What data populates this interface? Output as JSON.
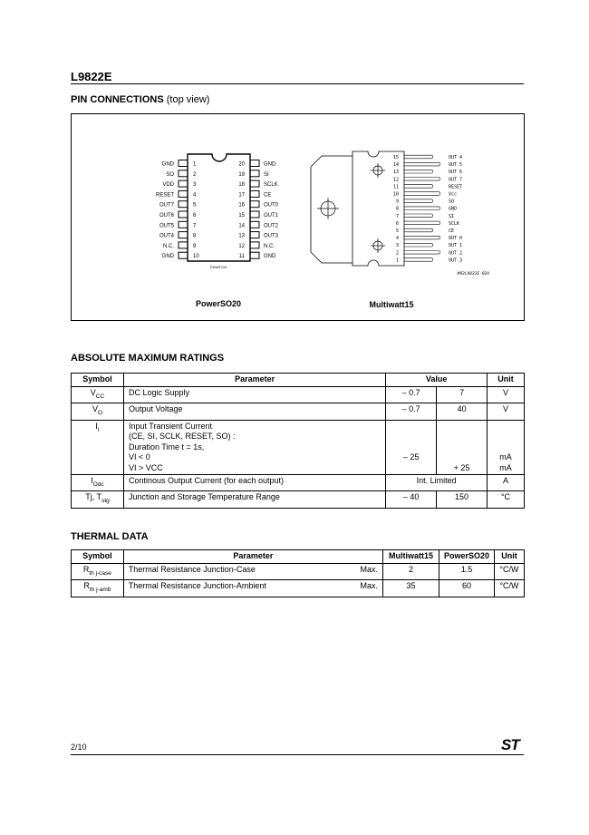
{
  "header": {
    "title": "L9822E"
  },
  "pin_connections": {
    "title": "PIN CONNECTIONS",
    "subtitle": "(top view)",
    "powerso20": {
      "label": "PowerSO20",
      "code": "D94AT119",
      "left_pins": [
        {
          "n": "1",
          "name": "GND"
        },
        {
          "n": "2",
          "name": "SO"
        },
        {
          "n": "3",
          "name": "VDD"
        },
        {
          "n": "4",
          "name": "RESET"
        },
        {
          "n": "5",
          "name": "OUT7"
        },
        {
          "n": "6",
          "name": "OUT6"
        },
        {
          "n": "7",
          "name": "OUT5"
        },
        {
          "n": "8",
          "name": "OUT4"
        },
        {
          "n": "9",
          "name": "N.C."
        },
        {
          "n": "10",
          "name": "GND"
        }
      ],
      "right_pins": [
        {
          "n": "20",
          "name": "GND"
        },
        {
          "n": "19",
          "name": "SI"
        },
        {
          "n": "18",
          "name": "SCLK"
        },
        {
          "n": "17",
          "name": "CE"
        },
        {
          "n": "16",
          "name": "OUT0"
        },
        {
          "n": "15",
          "name": "OUT1"
        },
        {
          "n": "14",
          "name": "OUT2"
        },
        {
          "n": "13",
          "name": "OUT3"
        },
        {
          "n": "12",
          "name": "N.C."
        },
        {
          "n": "11",
          "name": "GND"
        }
      ]
    },
    "multiwatt15": {
      "label": "Multiwatt15",
      "code": "M92L9822E-02A",
      "pins": [
        {
          "n": "15",
          "name": "OUT 4"
        },
        {
          "n": "14",
          "name": "OUT 5"
        },
        {
          "n": "13",
          "name": "OUT 6"
        },
        {
          "n": "12",
          "name": "OUT 7"
        },
        {
          "n": "11",
          "name": "RESET"
        },
        {
          "n": "10",
          "name": "Vcc"
        },
        {
          "n": "9",
          "name": "SO"
        },
        {
          "n": "8",
          "name": "GND"
        },
        {
          "n": "7",
          "name": "SI"
        },
        {
          "n": "6",
          "name": "SCLK"
        },
        {
          "n": "5",
          "name": "CE"
        },
        {
          "n": "4",
          "name": "OUT 0"
        },
        {
          "n": "3",
          "name": "OUT 1"
        },
        {
          "n": "2",
          "name": "OUT 2"
        },
        {
          "n": "1",
          "name": "OUT 3"
        }
      ]
    }
  },
  "abs_max": {
    "title": "ABSOLUTE MAXIMUM RATINGS",
    "headers": {
      "symbol": "Symbol",
      "parameter": "Parameter",
      "value": "Value",
      "unit": "Unit"
    },
    "rows": [
      {
        "sym": "V",
        "sub": "CC",
        "param": [
          "DC Logic Supply"
        ],
        "v1": "– 0.7",
        "v2": "7",
        "unit": "V"
      },
      {
        "sym": "V",
        "sub": "O",
        "param": [
          "Output Voltage"
        ],
        "v1": "– 0.7",
        "v2": "40",
        "unit": "V"
      },
      {
        "sym": "I",
        "sub": "I",
        "param": [
          "Input Transient Current",
          "(CE,  SI,  SCLK,  RESET,  SO) :",
          "Duration Time t = 1s,",
          "VI < 0",
          "VI > VCC"
        ],
        "v1": "– 25",
        "v2": "+ 25",
        "unit1": "mA",
        "unit2": "mA"
      },
      {
        "sym": "I",
        "sub": "Odc",
        "param": [
          "Continous Output Current (for each output)"
        ],
        "merged": "Int. Limited",
        "unit": "A"
      },
      {
        "sym": "Tj,  T",
        "sub": "stg",
        "param": [
          "Junction and Storage Temperature Range"
        ],
        "v1": "– 40",
        "v2": "150",
        "unit": "°C"
      }
    ]
  },
  "thermal": {
    "title": "THERMAL DATA",
    "headers": {
      "symbol": "Symbol",
      "parameter": "Parameter",
      "mw": "Multiwatt15",
      "pso": "PowerSO20",
      "unit": "Unit"
    },
    "rows": [
      {
        "sym": "R",
        "sub": "th j-case",
        "param": "Thermal Resistance Junction-Case",
        "max": "Max.",
        "mw": "2",
        "pso": "1.5",
        "unit": "°C/W"
      },
      {
        "sym": "R",
        "sub": "th j-amb",
        "param": "Thermal Resistance Junction-Ambient",
        "max": "Max.",
        "mw": "35",
        "pso": "60",
        "unit": "°C/W"
      }
    ]
  },
  "footer": {
    "page": "2/10",
    "logo": "ST"
  }
}
